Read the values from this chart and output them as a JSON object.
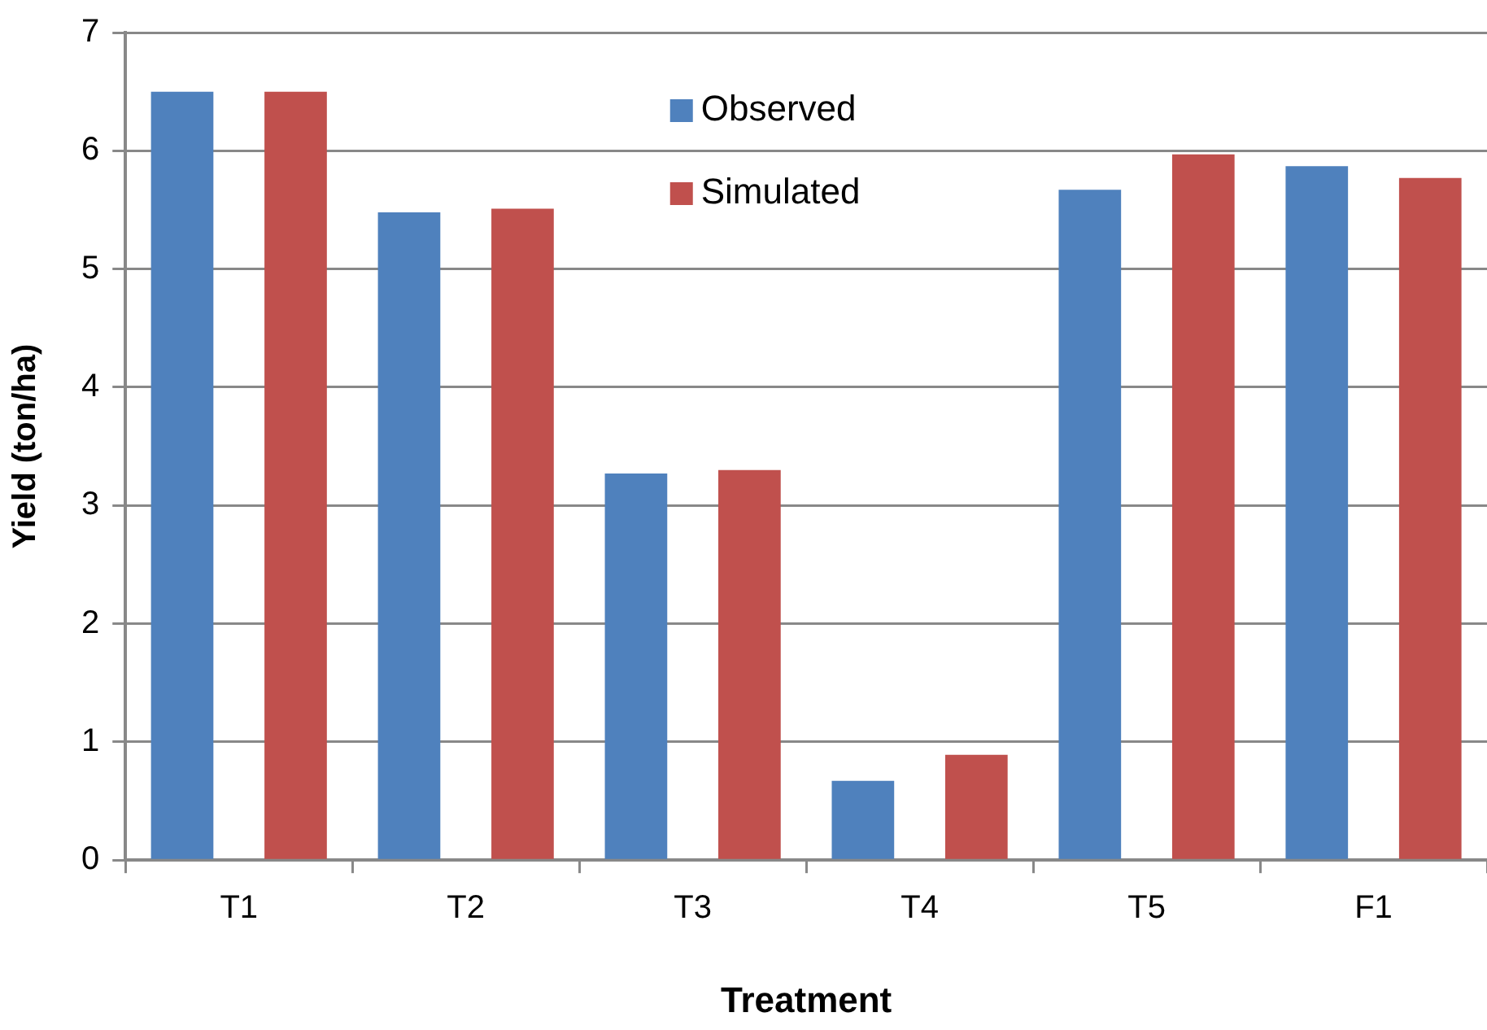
{
  "chart_data": {
    "type": "bar",
    "xlabel": "Treatment",
    "ylabel": "Yield (ton/ha)",
    "categories": [
      "T1",
      "T2",
      "T3",
      "T4",
      "T5",
      "F1"
    ],
    "series": [
      {
        "name": "Observed",
        "color": "#4f81bd",
        "values": [
          6.5,
          5.48,
          3.27,
          0.67,
          5.67,
          5.87
        ]
      },
      {
        "name": "Simulated",
        "color": "#c0504d",
        "values": [
          6.5,
          5.51,
          3.3,
          0.89,
          5.97,
          5.77
        ]
      }
    ],
    "ylim": [
      0,
      7
    ],
    "yticks": [
      0,
      1,
      2,
      3,
      4,
      5,
      6,
      7
    ],
    "grid": "y",
    "legend": "top"
  }
}
